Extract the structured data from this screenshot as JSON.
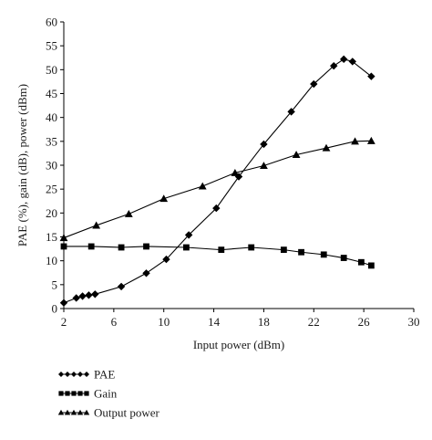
{
  "chart_data": {
    "type": "line",
    "title": "",
    "xlabel": "Input power (dBm)",
    "ylabel": "PAE (%), gain (dB), power (dBm)",
    "xlim": [
      2,
      30
    ],
    "ylim": [
      0,
      60
    ],
    "x_ticks": [
      2,
      6,
      10,
      14,
      18,
      22,
      26,
      30
    ],
    "y_ticks": [
      0,
      5,
      10,
      15,
      20,
      25,
      30,
      35,
      40,
      45,
      50,
      55,
      60
    ],
    "grid": false,
    "legend_position": "bottom-left",
    "series": [
      {
        "name": "PAE",
        "marker": "diamond",
        "color": "#000000",
        "points": [
          [
            2,
            1.2
          ],
          [
            3,
            2.2
          ],
          [
            3.5,
            2.6
          ],
          [
            4,
            2.8
          ],
          [
            4.5,
            3.0
          ],
          [
            6.6,
            4.6
          ],
          [
            8.6,
            7.4
          ],
          [
            10.2,
            10.3
          ],
          [
            12,
            15.4
          ],
          [
            14.2,
            21.0
          ],
          [
            16,
            27.6
          ],
          [
            18,
            34.4
          ],
          [
            20.2,
            41.2
          ],
          [
            22,
            47.0
          ],
          [
            23.6,
            50.8
          ],
          [
            24.4,
            52.2
          ],
          [
            25.1,
            51.7
          ],
          [
            26.6,
            48.6
          ]
        ]
      },
      {
        "name": "Gain",
        "marker": "square",
        "color": "#000000",
        "points": [
          [
            2,
            13.0
          ],
          [
            4.2,
            13.0
          ],
          [
            6.6,
            12.8
          ],
          [
            8.6,
            13.0
          ],
          [
            11.8,
            12.8
          ],
          [
            14.6,
            12.3
          ],
          [
            17,
            12.8
          ],
          [
            19.6,
            12.3
          ],
          [
            21,
            11.8
          ],
          [
            22.8,
            11.3
          ],
          [
            24.4,
            10.6
          ],
          [
            25.8,
            9.7
          ],
          [
            26.6,
            9.0
          ]
        ]
      },
      {
        "name": "Output power",
        "marker": "triangle",
        "color": "#000000",
        "points": [
          [
            2,
            14.8
          ],
          [
            4.6,
            17.4
          ],
          [
            7.2,
            19.8
          ],
          [
            10,
            23.0
          ],
          [
            13.1,
            25.6
          ],
          [
            15.7,
            28.4
          ],
          [
            18,
            29.9
          ],
          [
            20.6,
            32.2
          ],
          [
            23,
            33.6
          ],
          [
            25.3,
            35.0
          ],
          [
            26.6,
            35.1
          ]
        ]
      }
    ]
  }
}
